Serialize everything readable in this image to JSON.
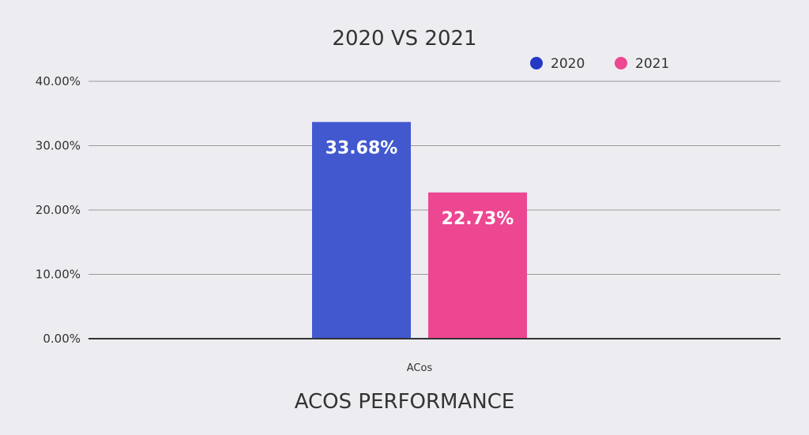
{
  "chart_data": {
    "type": "bar",
    "title": "2020 VS 2021",
    "xlabel": "ACOS PERFORMANCE",
    "ylabel": "",
    "categories": [
      "ACos"
    ],
    "series": [
      {
        "name": "2020",
        "values": [
          33.68
        ],
        "label": "33.68%",
        "color": "#4158cf"
      },
      {
        "name": "2021",
        "values": [
          22.73
        ],
        "label": "22.73%",
        "color": "#ec4790"
      }
    ],
    "yticks": [
      "0.00%",
      "10.00%",
      "20.00%",
      "30.00%",
      "40.00%"
    ],
    "ylim": [
      0,
      40
    ],
    "grid": true,
    "legend_position": "top-right",
    "legend_marker_colors": [
      "#2438c4",
      "#ec4790"
    ]
  }
}
